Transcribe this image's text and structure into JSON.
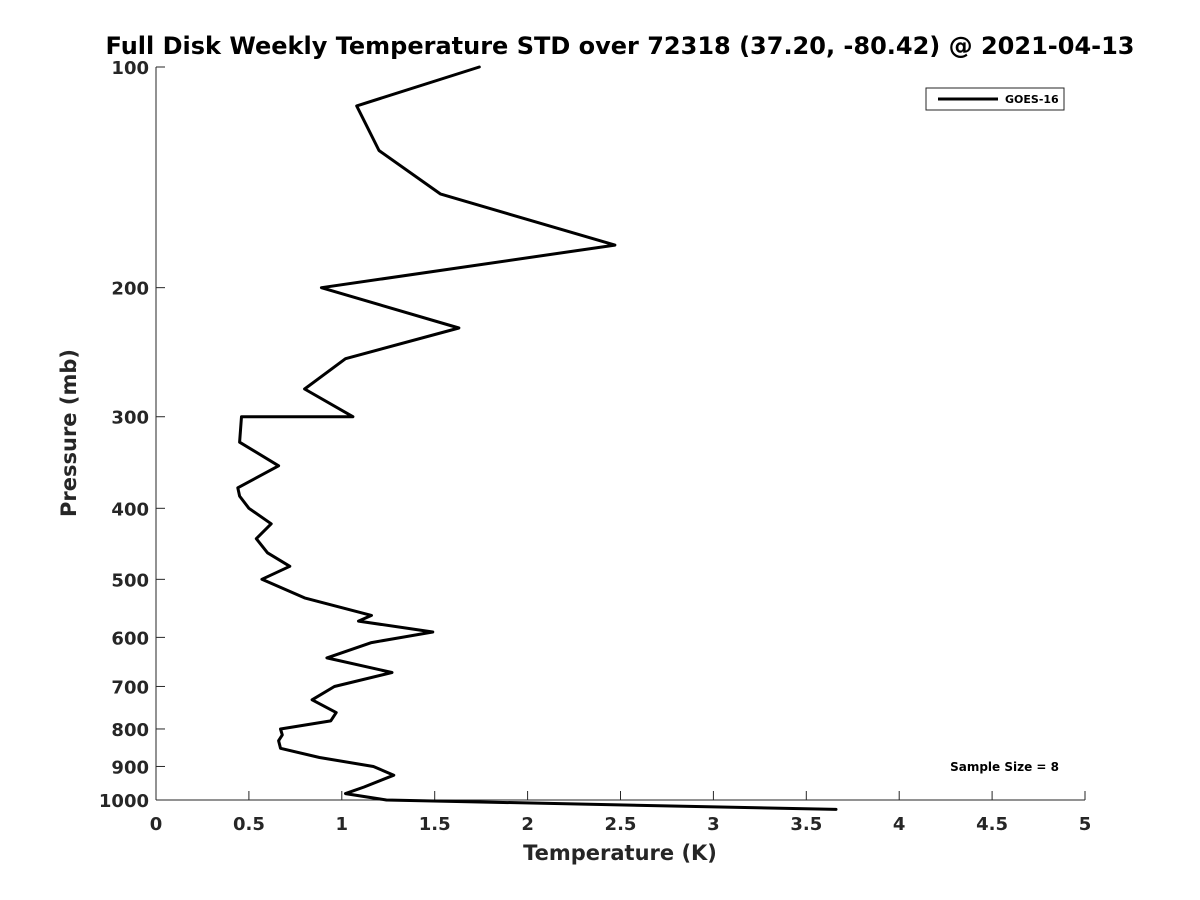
{
  "chart_data": {
    "type": "line",
    "title": "Full Disk Weekly Temperature STD over 72318 (37.20, -80.42) @ 2021-04-13",
    "xlabel": "Temperature (K)",
    "ylabel": "Pressure (mb)",
    "xlim": [
      0,
      5
    ],
    "ylim": [
      100,
      1000
    ],
    "y_scale": "log",
    "y_reversed": true,
    "x_ticks": [
      "0",
      "0.5",
      "1",
      "1.5",
      "2",
      "2.5",
      "3",
      "3.5",
      "4",
      "4.5",
      "5"
    ],
    "y_ticks": [
      "100",
      "200",
      "300",
      "400",
      "500",
      "600",
      "700",
      "800",
      "900",
      "1000"
    ],
    "grid": false,
    "legend": {
      "position": "top-right",
      "entries": [
        "GOES-16"
      ]
    },
    "annotation": "Sample Size = 8",
    "series": [
      {
        "name": "GOES-16",
        "color": "#000000",
        "x": [
          1.74,
          1.08,
          1.2,
          1.53,
          2.47,
          0.89,
          1.63,
          1.02,
          0.8,
          1.06,
          0.46,
          0.45,
          0.66,
          0.44,
          0.45,
          0.5,
          0.62,
          0.54,
          0.6,
          0.72,
          0.57,
          0.8,
          1.16,
          1.09,
          1.49,
          1.16,
          0.92,
          1.27,
          0.96,
          0.84,
          0.97,
          0.94,
          0.67,
          0.68,
          0.66,
          0.67,
          0.88,
          1.17,
          1.28,
          1.12,
          1.02,
          1.24,
          3.66
        ],
        "y": [
          100,
          113,
          130,
          149,
          175,
          200,
          227,
          250,
          275,
          300,
          300,
          325,
          350,
          375,
          385,
          400,
          420,
          440,
          460,
          480,
          500,
          530,
          560,
          570,
          590,
          610,
          640,
          670,
          700,
          730,
          760,
          780,
          800,
          815,
          830,
          850,
          875,
          900,
          925,
          960,
          980,
          1000,
          1030
        ]
      }
    ]
  }
}
